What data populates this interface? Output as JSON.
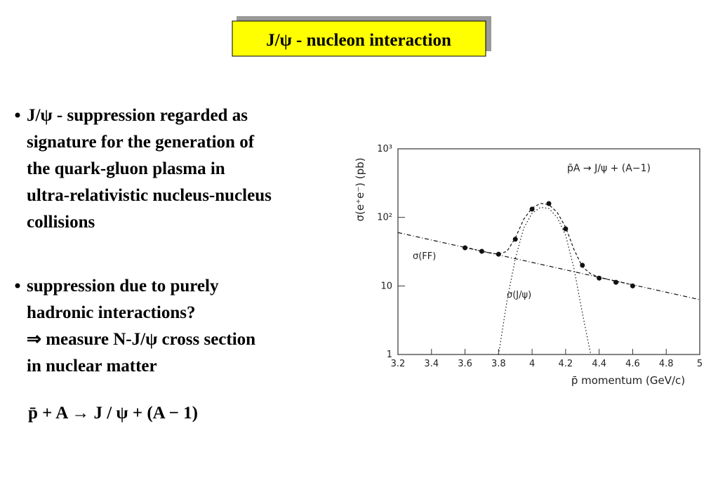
{
  "title": "J/ψ - nucleon interaction",
  "bullets": [
    [
      "J/ψ - suppression regarded as",
      "signature for the generation of",
      "the quark-gluon plasma in",
      "ultra-relativistic nucleus-nucleus",
      "collisions"
    ],
    [
      "suppression due to purely",
      "hadronic interactions?",
      "⇒ measure N-J/ψ cross section",
      "in nuclear matter"
    ]
  ],
  "equation": "p̄ + A → J / ψ + (A − 1)",
  "chart_data": {
    "type": "scatter",
    "annotation": "p̄A → J/ψ + (A−1)",
    "xlabel": "p̄ momentum (GeV/c)",
    "ylabel": "σ(e⁺e⁻) (pb)",
    "x": [
      3.6,
      3.7,
      3.8,
      3.9,
      4.0,
      4.1,
      4.2,
      4.3,
      4.4,
      4.5,
      4.6
    ],
    "values": [
      36,
      32,
      29,
      48,
      132,
      159,
      68,
      20,
      13,
      11.3,
      10
    ],
    "curves": [
      {
        "name": "σ(FF)",
        "style": "dashdot",
        "x": [
          3.2,
          5
        ],
        "values": [
          60,
          6.3
        ]
      },
      {
        "name": "σ(J/ψ)",
        "style": "dotted",
        "x": [
          3.8,
          3.85,
          3.9,
          3.95,
          4.0,
          4.05,
          4.1,
          4.15,
          4.2,
          4.25,
          4.3,
          4.35
        ],
        "values": [
          1,
          6,
          25,
          70,
          115,
          140,
          135,
          100,
          55,
          18,
          4,
          1
        ]
      },
      {
        "style": "dashed",
        "x": [
          3.6,
          3.7,
          3.8,
          3.85,
          3.9,
          3.95,
          4.0,
          4.05,
          4.1,
          4.15,
          4.2,
          4.25,
          4.3,
          4.35,
          4.4,
          4.5,
          4.6
        ],
        "values": [
          37,
          32,
          29,
          32,
          50,
          94,
          137,
          160,
          154,
          118,
          72,
          34,
          19,
          15,
          13.3,
          11.7,
          10.4
        ]
      }
    ],
    "xlim": [
      3.2,
      5
    ],
    "xticks": [
      3.2,
      3.4,
      3.6,
      3.8,
      4,
      4.2,
      4.4,
      4.6,
      4.8,
      5
    ],
    "ylim": [
      1,
      1000
    ],
    "yscale": "log",
    "yticks": [
      1,
      10,
      {
        "value": 100,
        "label": "10²"
      },
      {
        "value": 1000,
        "label": "10³"
      }
    ],
    "color": "#111111"
  }
}
